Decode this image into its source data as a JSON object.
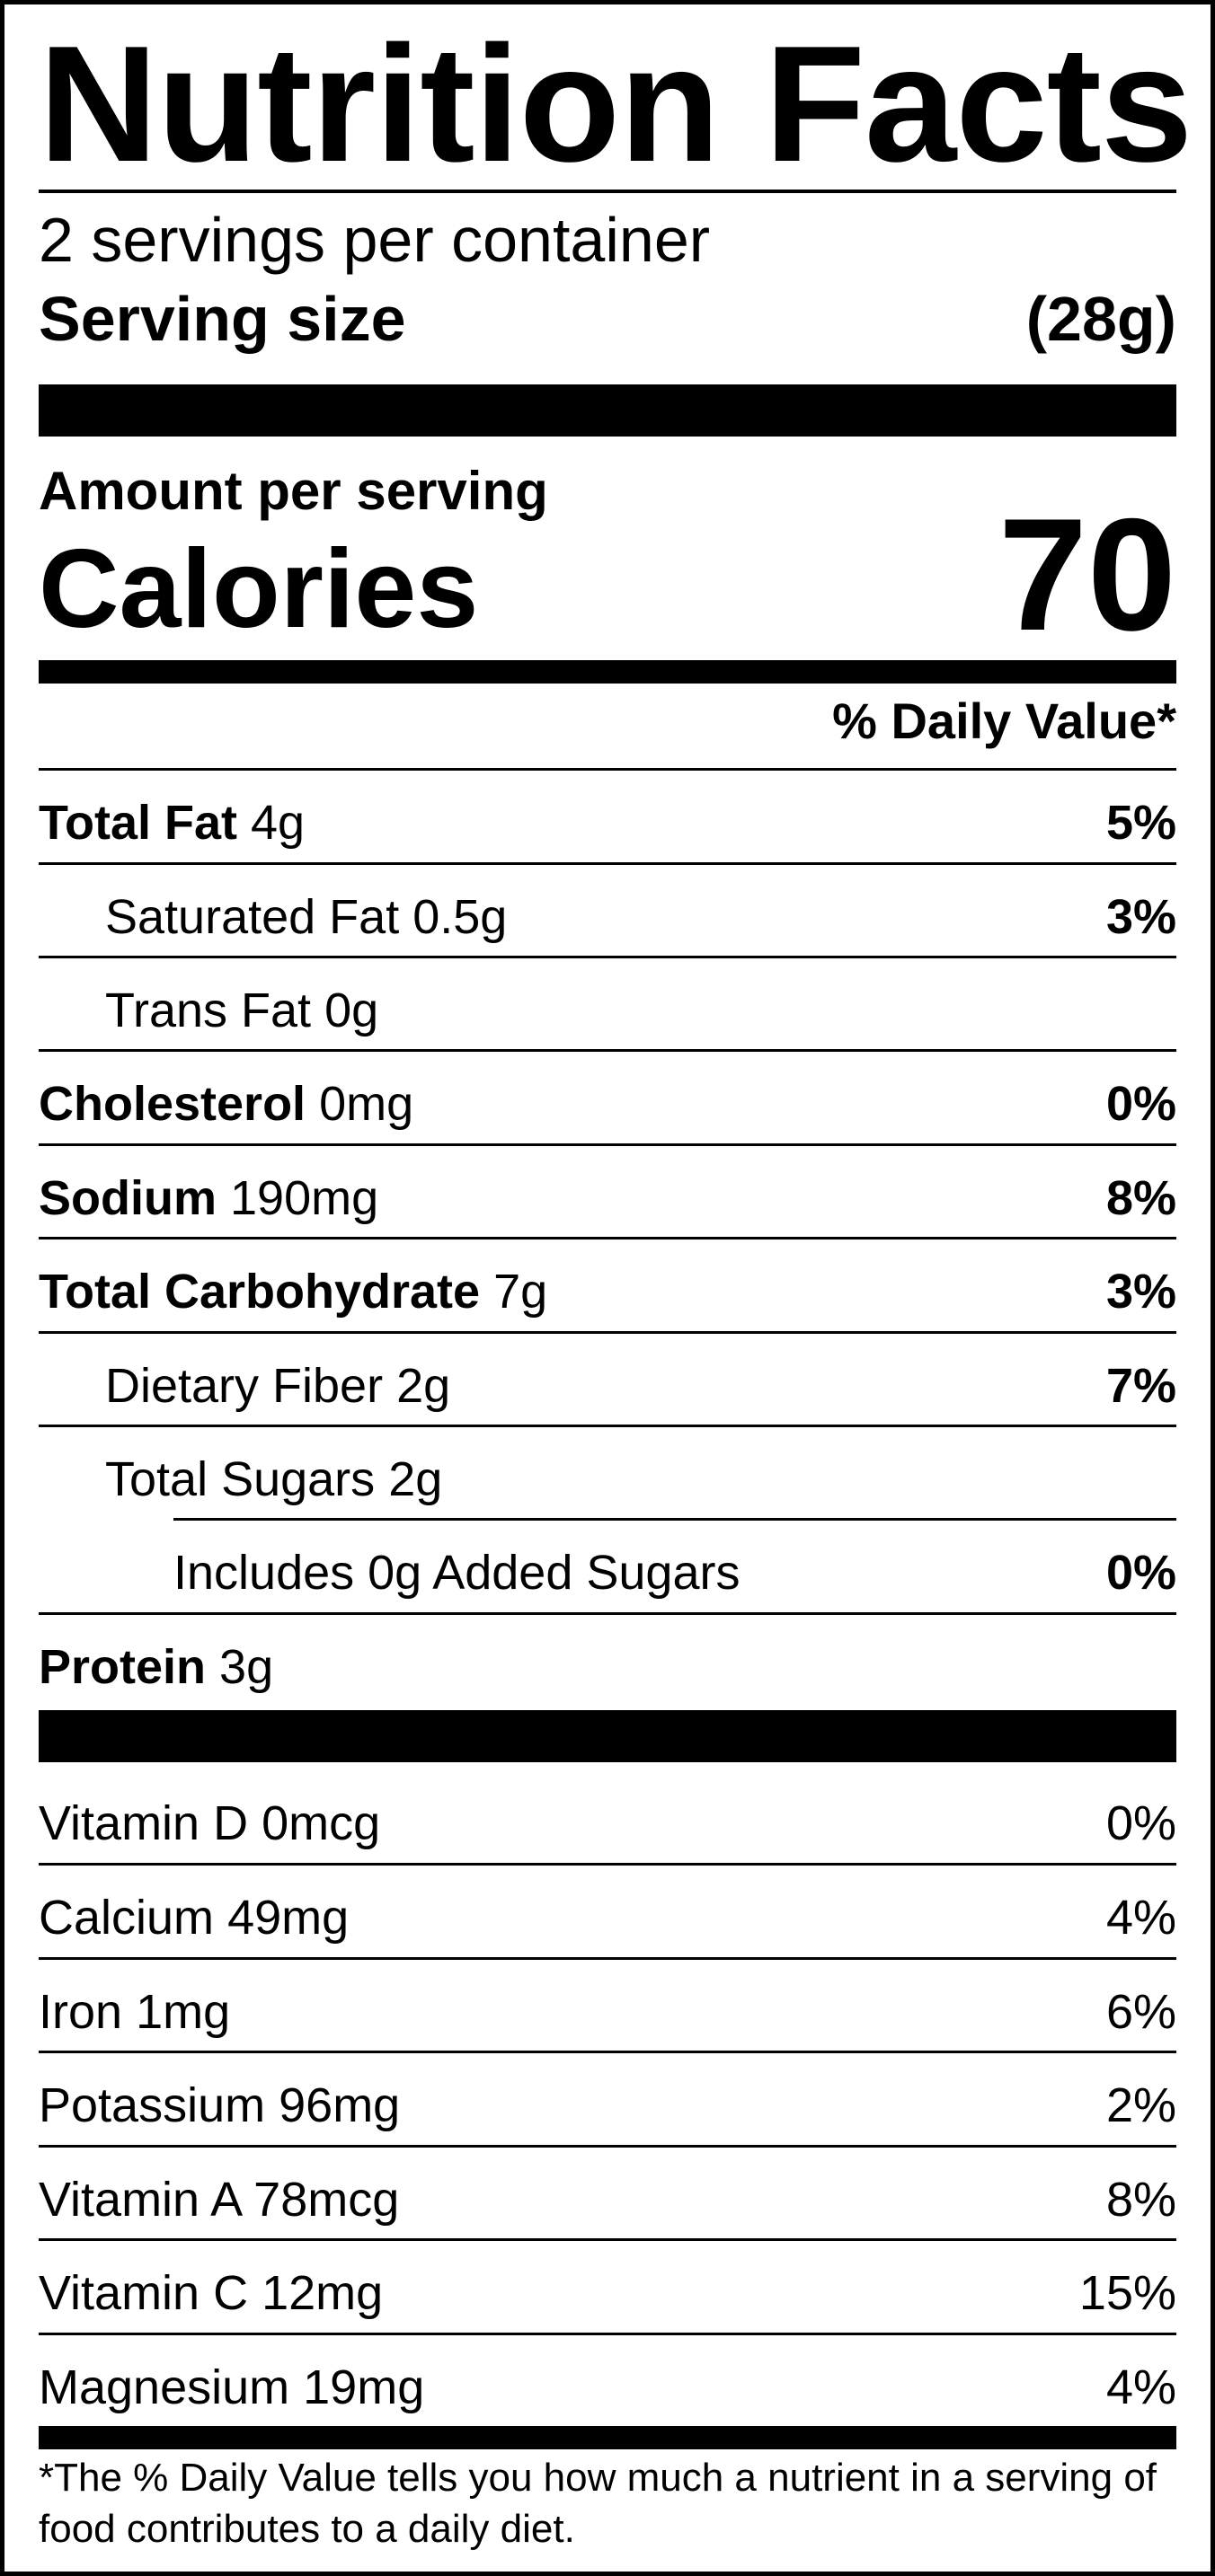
{
  "title": "Nutrition Facts",
  "servings_per_container": "2 servings per container",
  "serving_size": {
    "label": "Serving size",
    "value": "(28g)"
  },
  "amount_per_serving": "Amount per serving",
  "calories": {
    "label": "Calories",
    "value": "70"
  },
  "daily_value_header": "% Daily Value*",
  "nutrients": [
    {
      "name": "Total Fat",
      "amount": "4g",
      "dv": "5%"
    },
    {
      "name": "Saturated Fat",
      "amount": "0.5g",
      "dv": "3%"
    },
    {
      "name": "Trans Fat",
      "amount": "0g",
      "dv": ""
    },
    {
      "name": "Cholesterol",
      "amount": "0mg",
      "dv": "0%"
    },
    {
      "name": "Sodium",
      "amount": "190mg",
      "dv": "8%"
    },
    {
      "name": "Total Carbohydrate",
      "amount": "7g",
      "dv": "3%"
    },
    {
      "name": "Dietary Fiber",
      "amount": "2g",
      "dv": "7%"
    },
    {
      "name": "Total Sugars",
      "amount": "2g",
      "dv": ""
    },
    {
      "name": "Includes 0g Added Sugars",
      "amount": "",
      "dv": "0%"
    },
    {
      "name": "Protein",
      "amount": "3g",
      "dv": ""
    }
  ],
  "vitamins": [
    {
      "name": "Vitamin D",
      "amount": "0mcg",
      "dv": "0%"
    },
    {
      "name": "Calcium",
      "amount": "49mg",
      "dv": "4%"
    },
    {
      "name": "Iron",
      "amount": "1mg",
      "dv": "6%"
    },
    {
      "name": "Potassium",
      "amount": "96mg",
      "dv": "2%"
    },
    {
      "name": "Vitamin A",
      "amount": "78mcg",
      "dv": "8%"
    },
    {
      "name": "Vitamin C",
      "amount": "12mg",
      "dv": "15%"
    },
    {
      "name": "Magnesium",
      "amount": "19mg",
      "dv": "4%"
    }
  ],
  "footnote": "*The % Daily Value tells you how much a nutrient in a serving of food contributes to a daily diet."
}
